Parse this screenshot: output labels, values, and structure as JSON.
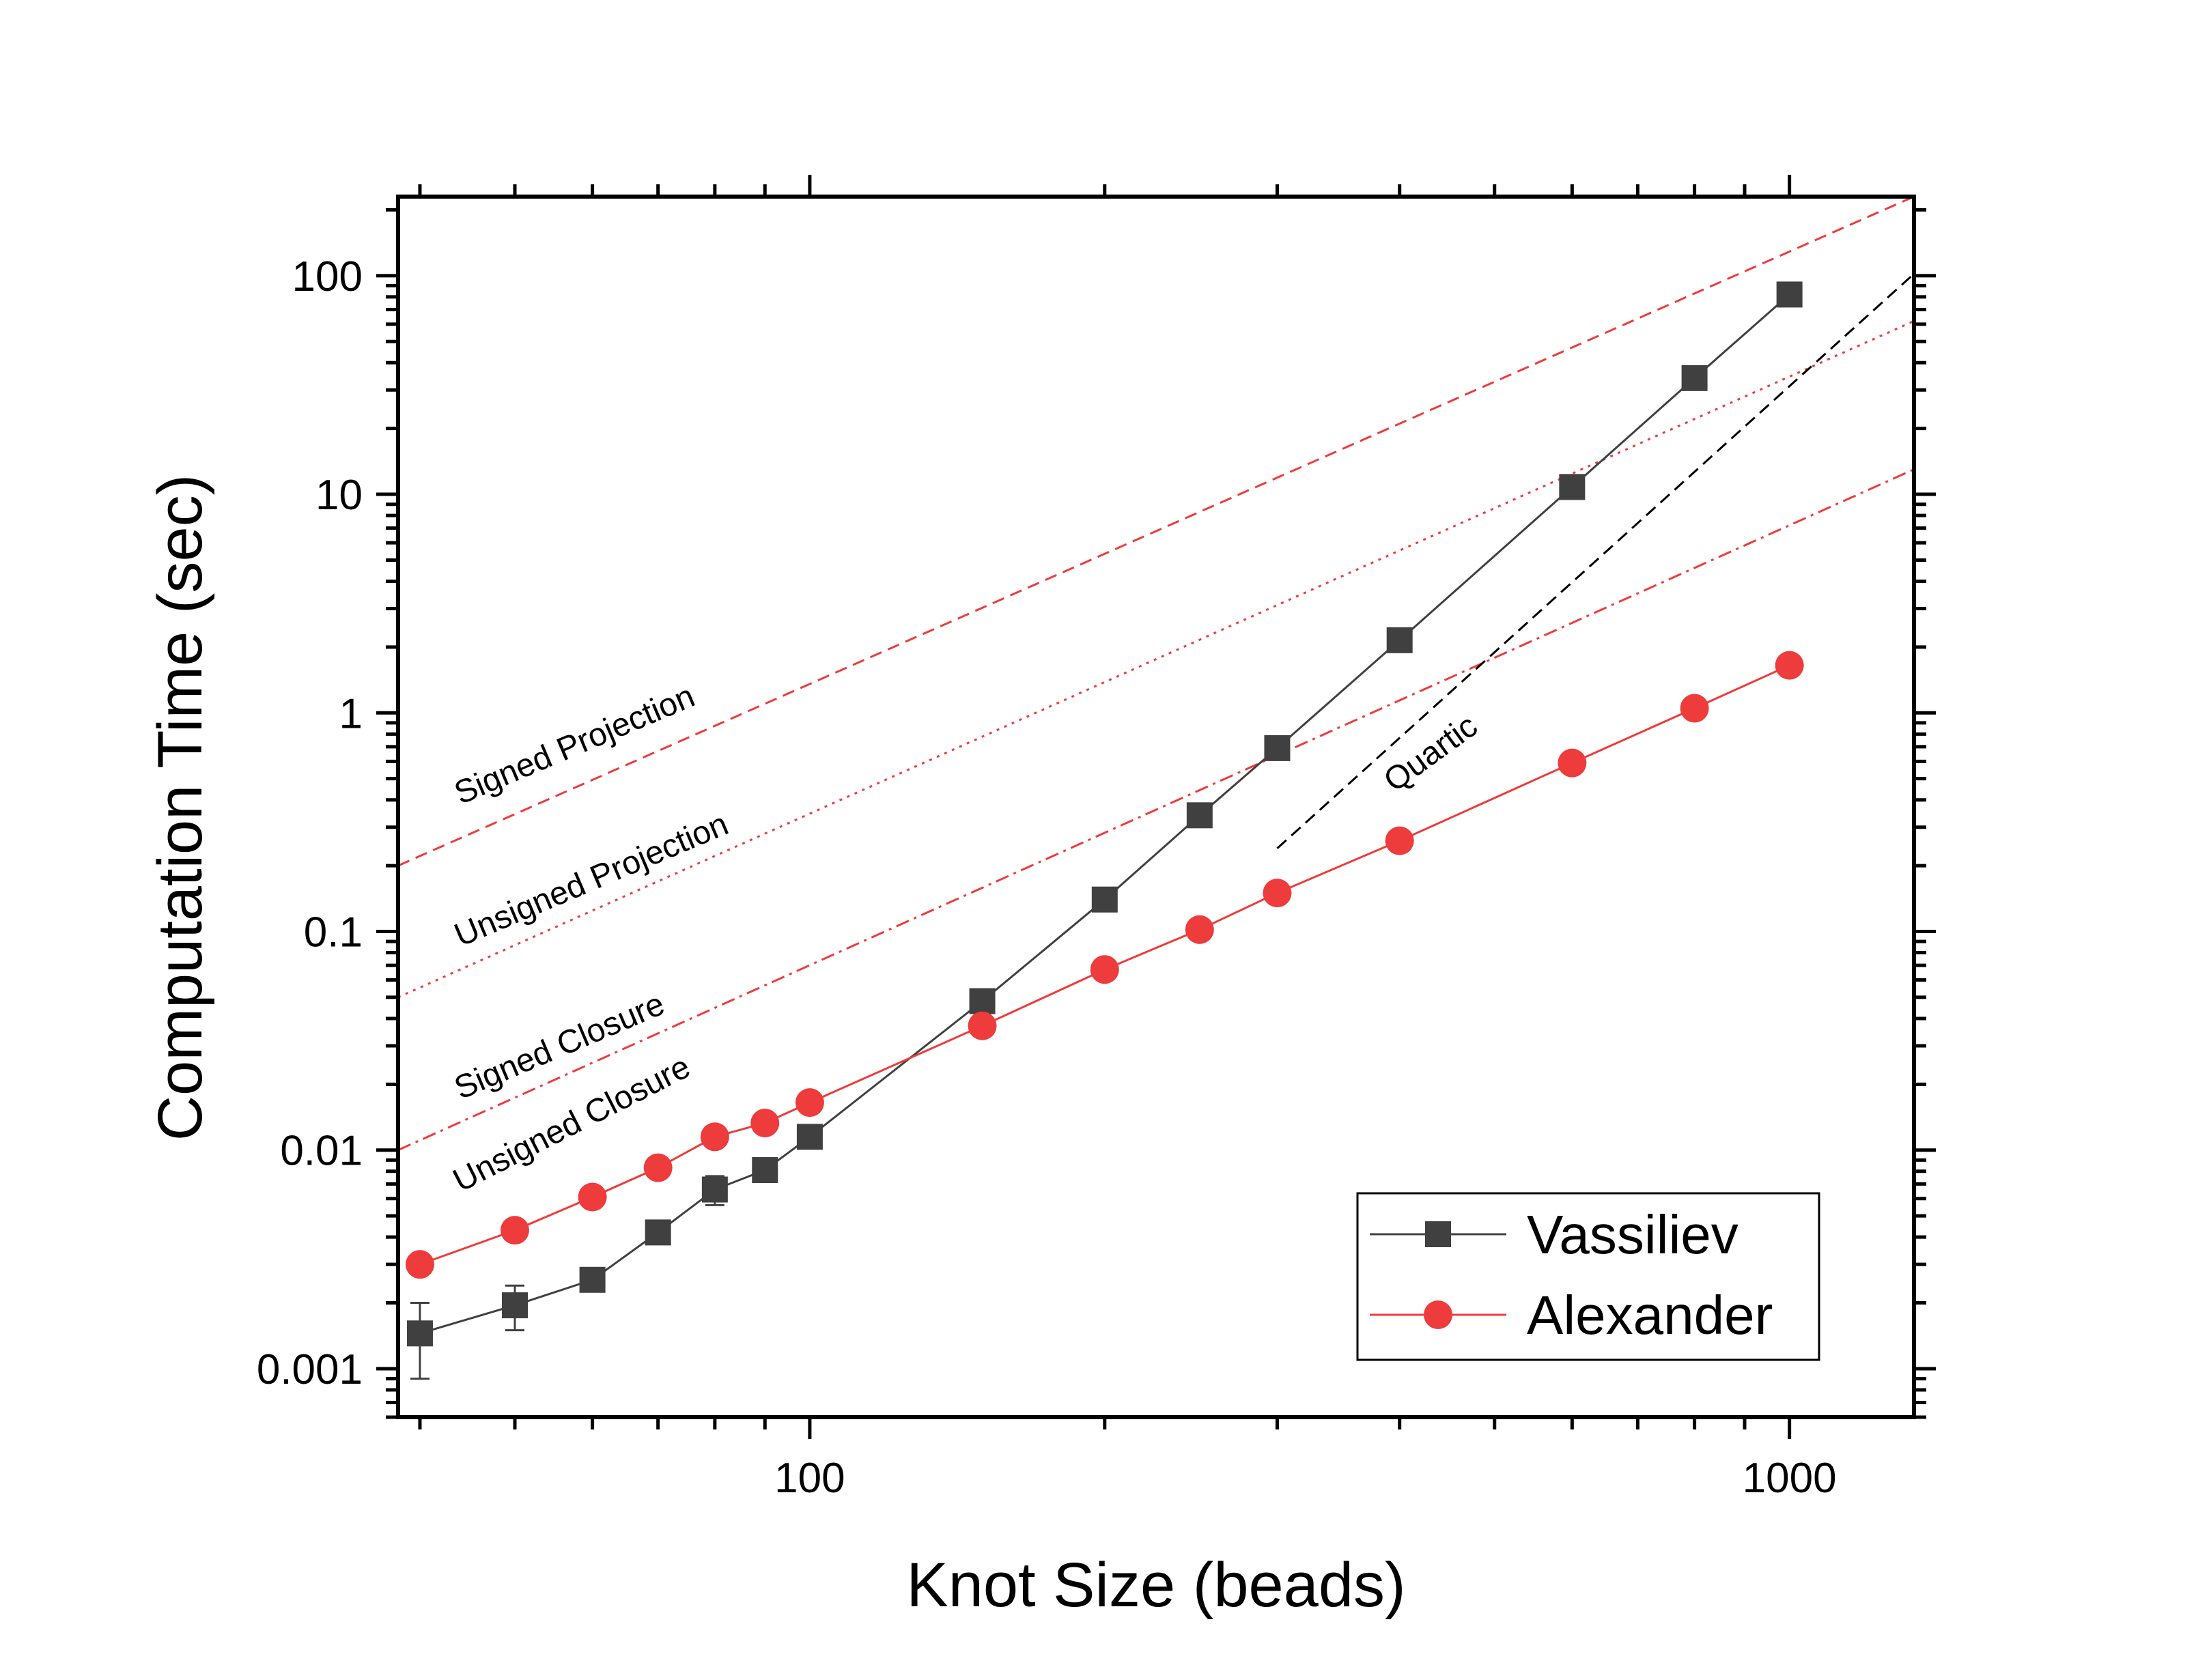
{
  "chart_data": {
    "type": "line",
    "title": "",
    "xlabel": "Knot Size (beads)",
    "ylabel": "Computation Time (sec)",
    "xscale": "log",
    "yscale": "log",
    "xlim": [
      38,
      1340
    ],
    "ylim": [
      0.0006,
      230
    ],
    "x_tick_labels": [
      {
        "value": 100,
        "label": "100"
      },
      {
        "value": 1000,
        "label": "1000"
      }
    ],
    "y_tick_labels": [
      {
        "value": 0.001,
        "label": "0.001"
      },
      {
        "value": 0.01,
        "label": "0.01"
      },
      {
        "value": 0.1,
        "label": "0.1"
      },
      {
        "value": 1,
        "label": "1"
      },
      {
        "value": 10,
        "label": "10"
      },
      {
        "value": 100,
        "label": "100"
      }
    ],
    "series": [
      {
        "name": "Vassiliev",
        "color": "#404040",
        "marker": "square",
        "x": [
          40,
          50,
          60,
          70,
          80,
          90,
          100,
          150,
          200,
          250,
          300,
          400,
          600,
          800,
          1000
        ],
        "y": [
          0.00145,
          0.00195,
          0.00255,
          0.0042,
          0.0066,
          0.0081,
          0.0115,
          0.048,
          0.14,
          0.34,
          0.69,
          2.15,
          10.8,
          34,
          82
        ],
        "err_low": [
          0.0009,
          0.0015,
          null,
          null,
          0.0056,
          null,
          null,
          null,
          null,
          null,
          null,
          null,
          null,
          null,
          null
        ],
        "err_high": [
          0.002,
          0.0024,
          null,
          null,
          0.0076,
          null,
          null,
          null,
          null,
          null,
          null,
          null,
          null,
          null,
          null
        ]
      },
      {
        "name": "Alexander",
        "color": "#ee3b3b",
        "marker": "circle",
        "x": [
          40,
          50,
          60,
          70,
          80,
          90,
          100,
          150,
          200,
          250,
          300,
          400,
          600,
          800,
          1000
        ],
        "y": [
          0.003,
          0.0043,
          0.0061,
          0.0083,
          0.0115,
          0.0133,
          0.0165,
          0.037,
          0.067,
          0.102,
          0.15,
          0.26,
          0.59,
          1.05,
          1.65
        ]
      }
    ],
    "reference_lines": [
      {
        "name": "Signed Projection",
        "label": "Signed Projection",
        "color": "#ee3b3b",
        "dash": "dashed",
        "x": [
          38,
          1340
        ],
        "y": [
          0.2,
          230
        ]
      },
      {
        "name": "Unsigned Projection",
        "label": "Unsigned Projection",
        "color": "#ee3b3b",
        "dash": "dotted",
        "x": [
          38,
          1340
        ],
        "y": [
          0.05,
          62
        ]
      },
      {
        "name": "Signed Closure",
        "label": "Signed Closure",
        "color": "#ee3b3b",
        "dash": "dashdot",
        "x": [
          38,
          1340
        ],
        "y": [
          0.01,
          13
        ]
      },
      {
        "name": "Quartic",
        "label": "Quartic",
        "color": "#000000",
        "dash": "dashed",
        "x": [
          300,
          1340
        ],
        "y": [
          0.24,
          102
        ]
      }
    ],
    "annotations": [
      {
        "text": "Signed Projection",
        "x": 44,
        "y": 0.38,
        "angle_deg": -23
      },
      {
        "text": "Unsigned Projection",
        "x": 44,
        "y": 0.085,
        "angle_deg": -23
      },
      {
        "text": "Signed Closure",
        "x": 44,
        "y": 0.017,
        "angle_deg": -23
      },
      {
        "text": "Unsigned Closure",
        "x": 44,
        "y": 0.0064,
        "angle_deg": -27
      },
      {
        "text": "Quartic",
        "x": 395,
        "y": 0.43,
        "angle_deg": -36
      }
    ],
    "legend": {
      "position": "bottom-right",
      "entries": [
        "Vassiliev",
        "Alexander"
      ]
    }
  }
}
